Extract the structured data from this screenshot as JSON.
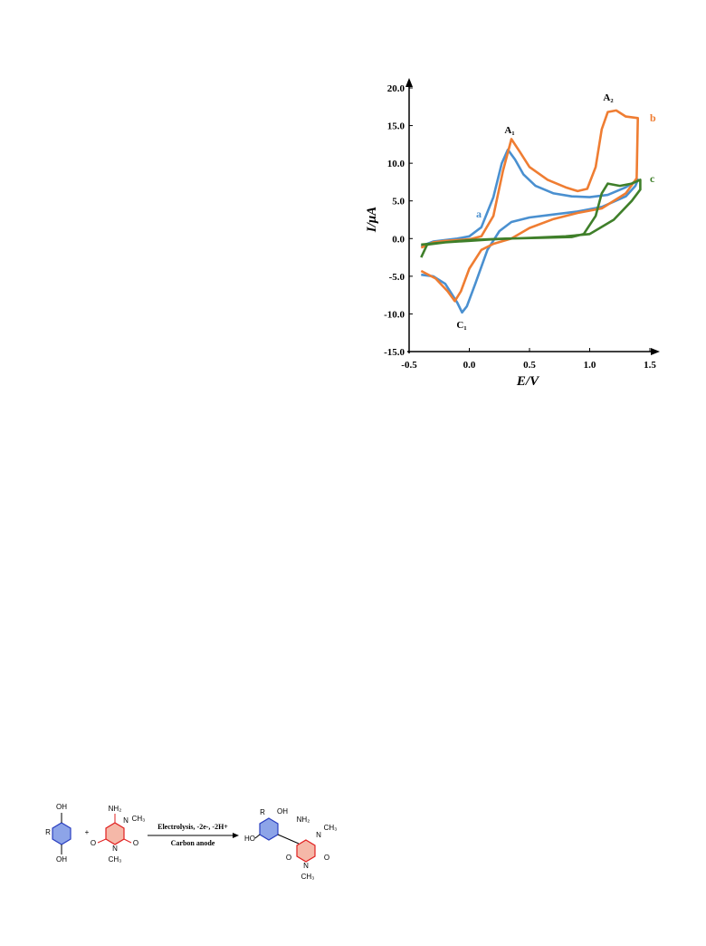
{
  "chart_data": {
    "type": "line",
    "x_label": "E/V",
    "y_label": "I/μA",
    "xlim": [
      -0.5,
      1.5
    ],
    "ylim": [
      -15,
      20
    ],
    "xticks": [
      -0.5,
      {
        "value": 0,
        "label": "0.0"
      },
      0.5,
      {
        "value": 1,
        "label": "1.0"
      },
      1.5
    ],
    "yticks": [
      {
        "value": 20,
        "label": "20.0"
      },
      {
        "value": 15,
        "label": "15.0"
      },
      {
        "value": 10,
        "label": "10.0"
      },
      {
        "value": 5,
        "label": "5.0"
      },
      {
        "value": 0,
        "label": "0.0"
      },
      {
        "value": -5,
        "label": "-5.0"
      },
      {
        "value": -10,
        "label": "-10.0"
      },
      {
        "value": -15,
        "label": "-15.0"
      }
    ],
    "annotations": [
      "A₁",
      "A₂",
      "C₁"
    ],
    "series": [
      {
        "name": "a",
        "color": "#4a90d0",
        "x": [
          -0.4,
          -0.3,
          -0.2,
          -0.1,
          0.0,
          0.1,
          0.2,
          0.27,
          0.32,
          0.38,
          0.45,
          0.55,
          0.7,
          0.85,
          1.0,
          1.15,
          1.3,
          1.4,
          1.38,
          1.3,
          1.1,
          0.9,
          0.7,
          0.5,
          0.35,
          0.25,
          0.15,
          0.05,
          -0.02,
          -0.06,
          -0.1,
          -0.2,
          -0.3,
          -0.4
        ],
        "values": [
          -1.0,
          -0.4,
          -0.2,
          0.0,
          0.3,
          1.5,
          5.5,
          10.0,
          11.8,
          10.5,
          8.5,
          7.0,
          6.0,
          5.6,
          5.5,
          5.8,
          6.8,
          7.8,
          7.0,
          5.6,
          4.2,
          3.6,
          3.2,
          2.8,
          2.2,
          1.0,
          -1.5,
          -6.0,
          -9.0,
          -9.8,
          -8.5,
          -6.0,
          -5.0,
          -4.8
        ]
      },
      {
        "name": "b",
        "color": "#ef7d32",
        "x": [
          -0.4,
          -0.3,
          -0.2,
          0.0,
          0.1,
          0.2,
          0.28,
          0.35,
          0.42,
          0.5,
          0.65,
          0.8,
          0.9,
          0.98,
          1.05,
          1.1,
          1.15,
          1.22,
          1.3,
          1.4,
          1.39,
          1.3,
          1.1,
          0.9,
          0.7,
          0.5,
          0.35,
          0.2,
          0.1,
          0.0,
          -0.07,
          -0.12,
          -0.18,
          -0.28,
          -0.4
        ],
        "values": [
          -1.2,
          -0.5,
          -0.3,
          -0.1,
          0.3,
          3.0,
          9.0,
          13.2,
          11.5,
          9.5,
          7.8,
          6.8,
          6.3,
          6.6,
          9.5,
          14.5,
          16.8,
          17.0,
          16.2,
          16.0,
          8.0,
          6.0,
          4.0,
          3.4,
          2.6,
          1.4,
          0.0,
          -0.7,
          -1.5,
          -4.0,
          -7.0,
          -8.3,
          -7.0,
          -5.3,
          -4.3
        ]
      },
      {
        "name": "c",
        "color": "#3f7f2a",
        "x": [
          -0.4,
          -0.35,
          -0.2,
          0.0,
          0.3,
          0.6,
          0.85,
          0.95,
          1.05,
          1.1,
          1.15,
          1.25,
          1.35,
          1.42,
          1.42,
          1.35,
          1.2,
          1.0,
          0.8,
          0.5,
          0.2,
          0.0,
          -0.2,
          -0.4
        ],
        "values": [
          -2.5,
          -0.8,
          -0.5,
          -0.2,
          0.0,
          0.1,
          0.2,
          0.6,
          3.0,
          6.0,
          7.3,
          7.0,
          7.3,
          7.8,
          6.5,
          5.0,
          2.5,
          0.6,
          0.3,
          0.1,
          -0.1,
          -0.3,
          -0.5,
          -0.8
        ]
      }
    ]
  },
  "scheme": {
    "reagent_top": "Electrolysis, -2e-, -2H+",
    "reagent_bottom": "Carbon anode",
    "labels": [
      "OH",
      "OH",
      "R",
      "+",
      "NH₂",
      "CH₃",
      "N",
      "O",
      "O",
      "N",
      "CH₃",
      "R",
      "OH",
      "NH₂",
      "HO",
      "N",
      "CH₃",
      "O",
      "O",
      "N",
      "CH₃"
    ]
  }
}
